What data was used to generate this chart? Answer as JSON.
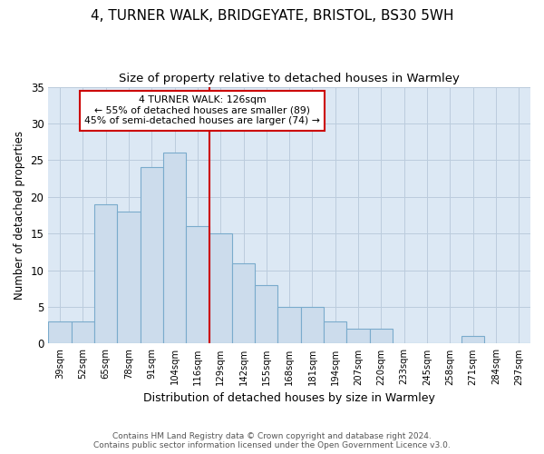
{
  "title": "4, TURNER WALK, BRIDGEYATE, BRISTOL, BS30 5WH",
  "subtitle": "Size of property relative to detached houses in Warmley",
  "xlabel": "Distribution of detached houses by size in Warmley",
  "ylabel": "Number of detached properties",
  "footer1": "Contains HM Land Registry data © Crown copyright and database right 2024.",
  "footer2": "Contains public sector information licensed under the Open Government Licence v3.0.",
  "categories": [
    "39sqm",
    "52sqm",
    "65sqm",
    "78sqm",
    "91sqm",
    "104sqm",
    "116sqm",
    "129sqm",
    "142sqm",
    "155sqm",
    "168sqm",
    "181sqm",
    "194sqm",
    "207sqm",
    "220sqm",
    "233sqm",
    "245sqm",
    "258sqm",
    "271sqm",
    "284sqm",
    "297sqm"
  ],
  "values": [
    3,
    3,
    19,
    18,
    24,
    26,
    16,
    15,
    11,
    8,
    5,
    5,
    3,
    2,
    2,
    0,
    0,
    0,
    1,
    0,
    0
  ],
  "bar_color": "#ccdcec",
  "bar_edge_color": "#7aabcc",
  "vline_bin_index": 7,
  "vline_color": "#cc0000",
  "annotation_line1": "4 TURNER WALK: 126sqm",
  "annotation_line2": "← 55% of detached houses are smaller (89)",
  "annotation_line3": "45% of semi-detached houses are larger (74) →",
  "annotation_box_facecolor": "#ffffff",
  "annotation_box_edgecolor": "#cc0000",
  "ylim": [
    0,
    35
  ],
  "yticks": [
    0,
    5,
    10,
    15,
    20,
    25,
    30,
    35
  ],
  "grid_color": "#bbccdd",
  "bg_color": "#dce8f4",
  "title_fontsize": 11,
  "subtitle_fontsize": 9.5,
  "xlabel_fontsize": 9,
  "ylabel_fontsize": 8.5,
  "footer_fontsize": 6.5
}
